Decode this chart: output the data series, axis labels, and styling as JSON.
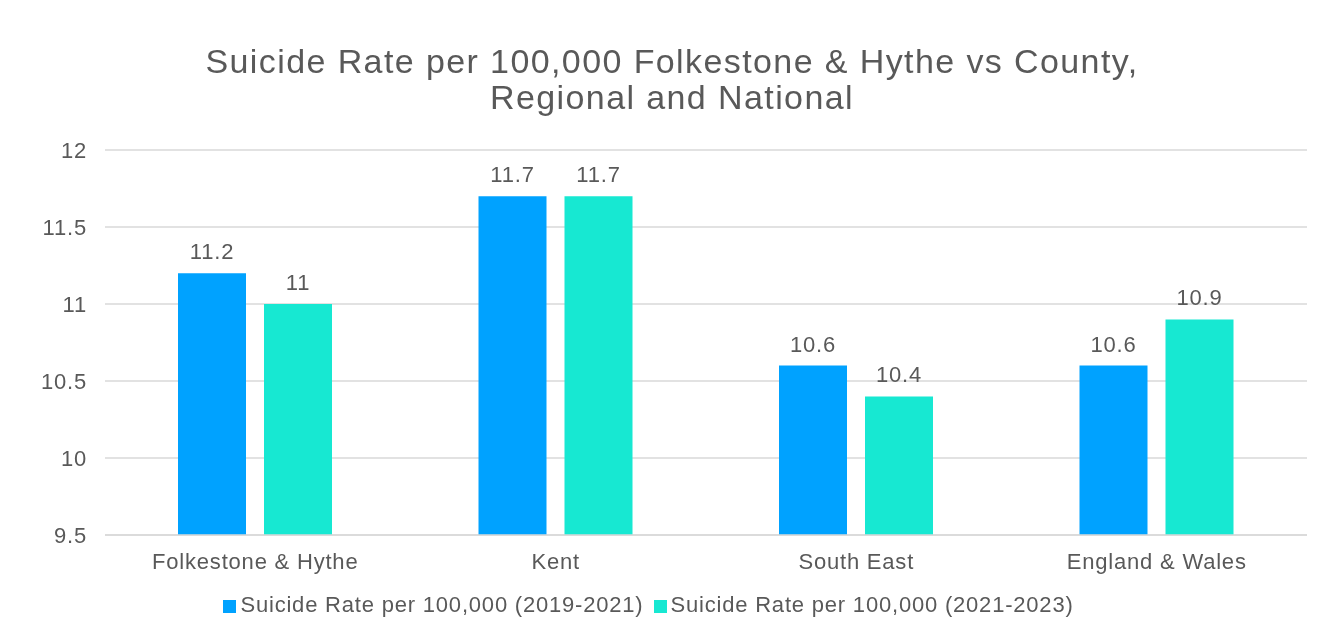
{
  "chart_data": {
    "type": "bar",
    "title": "Suicide Rate per 100,000 Folkestone & Hythe vs County, Regional and National",
    "categories": [
      "Folkestone & Hythe",
      "Kent",
      "South East",
      "England & Wales"
    ],
    "series": [
      {
        "name": "Suicide Rate per 100,000 (2019-2021)",
        "color": "#00a2ff",
        "values": [
          11.2,
          11.7,
          10.6,
          10.6
        ]
      },
      {
        "name": "Suicide Rate per 100,000 (2021-2023)",
        "color": "#17e8d2",
        "values": [
          11,
          11.7,
          10.4,
          10.9
        ]
      }
    ],
    "ylim": [
      9.5,
      12
    ],
    "yticks": [
      9.5,
      10,
      10.5,
      11,
      11.5,
      12
    ],
    "grid": "y",
    "legend": "bottom",
    "data_labels": true
  }
}
